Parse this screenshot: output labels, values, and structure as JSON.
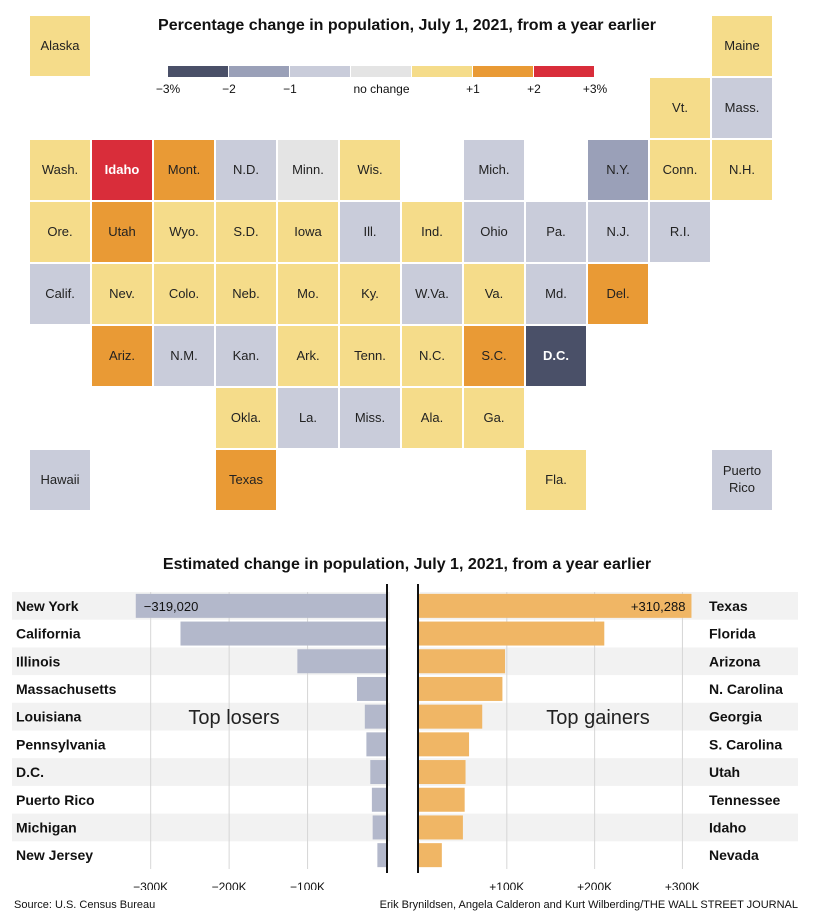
{
  "map": {
    "title": "Percentage change in population, July 1, 2021, from a year earlier",
    "legend": [
      {
        "label": "−3%",
        "color": "#4a5068"
      },
      {
        "label": "−2",
        "color": "#9aa0b8"
      },
      {
        "label": "−1",
        "color": "#c9ccda"
      },
      {
        "label": "no change",
        "color": "#e4e4e4"
      },
      {
        "label": "+1",
        "color": "#f5dc8a"
      },
      {
        "label": "+2",
        "color": "#e99a35"
      },
      {
        "label": "+3%",
        "color": "#d92d3a"
      }
    ],
    "tiles": [
      {
        "label": "Alaska",
        "row": 0,
        "col": 0,
        "level": 4
      },
      {
        "label": "Maine",
        "row": 0,
        "col": 11,
        "level": 4
      },
      {
        "label": "Vt.",
        "row": 1,
        "col": 10,
        "level": 4
      },
      {
        "label": "Mass.",
        "row": 1,
        "col": 11,
        "level": 2
      },
      {
        "label": "Wash.",
        "row": 2,
        "col": 0,
        "level": 4
      },
      {
        "label": "Idaho",
        "row": 2,
        "col": 1,
        "level": 6
      },
      {
        "label": "Mont.",
        "row": 2,
        "col": 2,
        "level": 5
      },
      {
        "label": "N.D.",
        "row": 2,
        "col": 3,
        "level": 2
      },
      {
        "label": "Minn.",
        "row": 2,
        "col": 4,
        "level": 3
      },
      {
        "label": "Wis.",
        "row": 2,
        "col": 5,
        "level": 4
      },
      {
        "label": "Mich.",
        "row": 2,
        "col": 7,
        "level": 2
      },
      {
        "label": "N.Y.",
        "row": 2,
        "col": 9,
        "level": 1
      },
      {
        "label": "Conn.",
        "row": 2,
        "col": 10,
        "level": 4
      },
      {
        "label": "N.H.",
        "row": 2,
        "col": 11,
        "level": 4
      },
      {
        "label": "Ore.",
        "row": 3,
        "col": 0,
        "level": 4
      },
      {
        "label": "Utah",
        "row": 3,
        "col": 1,
        "level": 5
      },
      {
        "label": "Wyo.",
        "row": 3,
        "col": 2,
        "level": 4
      },
      {
        "label": "S.D.",
        "row": 3,
        "col": 3,
        "level": 4
      },
      {
        "label": "Iowa",
        "row": 3,
        "col": 4,
        "level": 4
      },
      {
        "label": "Ill.",
        "row": 3,
        "col": 5,
        "level": 2
      },
      {
        "label": "Ind.",
        "row": 3,
        "col": 6,
        "level": 4
      },
      {
        "label": "Ohio",
        "row": 3,
        "col": 7,
        "level": 2
      },
      {
        "label": "Pa.",
        "row": 3,
        "col": 8,
        "level": 2
      },
      {
        "label": "N.J.",
        "row": 3,
        "col": 9,
        "level": 2
      },
      {
        "label": "R.I.",
        "row": 3,
        "col": 10,
        "level": 2
      },
      {
        "label": "Calif.",
        "row": 4,
        "col": 0,
        "level": 2
      },
      {
        "label": "Nev.",
        "row": 4,
        "col": 1,
        "level": 4
      },
      {
        "label": "Colo.",
        "row": 4,
        "col": 2,
        "level": 4
      },
      {
        "label": "Neb.",
        "row": 4,
        "col": 3,
        "level": 4
      },
      {
        "label": "Mo.",
        "row": 4,
        "col": 4,
        "level": 4
      },
      {
        "label": "Ky.",
        "row": 4,
        "col": 5,
        "level": 4
      },
      {
        "label": "W.Va.",
        "row": 4,
        "col": 6,
        "level": 2
      },
      {
        "label": "Va.",
        "row": 4,
        "col": 7,
        "level": 4
      },
      {
        "label": "Md.",
        "row": 4,
        "col": 8,
        "level": 2
      },
      {
        "label": "Del.",
        "row": 4,
        "col": 9,
        "level": 5
      },
      {
        "label": "Ariz.",
        "row": 5,
        "col": 1,
        "level": 5
      },
      {
        "label": "N.M.",
        "row": 5,
        "col": 2,
        "level": 2
      },
      {
        "label": "Kan.",
        "row": 5,
        "col": 3,
        "level": 2
      },
      {
        "label": "Ark.",
        "row": 5,
        "col": 4,
        "level": 4
      },
      {
        "label": "Tenn.",
        "row": 5,
        "col": 5,
        "level": 4
      },
      {
        "label": "N.C.",
        "row": 5,
        "col": 6,
        "level": 4
      },
      {
        "label": "S.C.",
        "row": 5,
        "col": 7,
        "level": 5
      },
      {
        "label": "D.C.",
        "row": 5,
        "col": 8,
        "level": 0
      },
      {
        "label": "Okla.",
        "row": 6,
        "col": 3,
        "level": 4
      },
      {
        "label": "La.",
        "row": 6,
        "col": 4,
        "level": 2
      },
      {
        "label": "Miss.",
        "row": 6,
        "col": 5,
        "level": 2
      },
      {
        "label": "Ala.",
        "row": 6,
        "col": 6,
        "level": 4
      },
      {
        "label": "Ga.",
        "row": 6,
        "col": 7,
        "level": 4
      },
      {
        "label": "Hawaii",
        "row": 7,
        "col": 0,
        "level": 2
      },
      {
        "label": "Texas",
        "row": 7,
        "col": 3,
        "level": 5
      },
      {
        "label": "Fla.",
        "row": 7,
        "col": 8,
        "level": 4
      },
      {
        "label": "Puerto Rico",
        "row": 7,
        "col": 11,
        "level": 2
      }
    ]
  },
  "chart_data": {
    "type": "bar",
    "title": "Estimated change in population, July 1, 2021, from a year earlier",
    "losers": {
      "annotation": "Top losers",
      "color": "#b3b8cb",
      "categories": [
        "New York",
        "California",
        "Illinois",
        "Massachusetts",
        "Louisiana",
        "Pennsylvania",
        "D.C.",
        "Puerto Rico",
        "Michigan",
        "New Jersey"
      ],
      "values": [
        -319020,
        -262000,
        -113000,
        -37000,
        -27000,
        -25000,
        -20000,
        -18000,
        -17000,
        -11000
      ],
      "value_labels": [
        "−319,020",
        "",
        "",
        "",
        "",
        "",
        "",
        "",
        "",
        ""
      ],
      "xlim": [
        -320000,
        0
      ],
      "ticks": [
        {
          "value": -300000,
          "label": "−300K"
        },
        {
          "value": -200000,
          "label": "−200K"
        },
        {
          "value": -100000,
          "label": "−100K"
        }
      ]
    },
    "gainers": {
      "annotation": "Top gainers",
      "color": "#f0b665",
      "categories": [
        "Texas",
        "Florida",
        "Arizona",
        "N. Carolina",
        "Georgia",
        "S. Carolina",
        "Utah",
        "Tennessee",
        "Idaho",
        "Nevada"
      ],
      "values": [
        310288,
        211000,
        98000,
        95000,
        72000,
        57000,
        53000,
        52000,
        50000,
        26000
      ],
      "value_labels": [
        "+310,288",
        "",
        "",
        "",
        "",
        "",
        "",
        "",
        "",
        ""
      ],
      "xlim": [
        0,
        320000
      ],
      "ticks": [
        {
          "value": 100000,
          "label": "+100K"
        },
        {
          "value": 200000,
          "label": "+200K"
        },
        {
          "value": 300000,
          "label": "+300K"
        }
      ]
    }
  },
  "footer": {
    "source": "Source: U.S. Census Bureau",
    "credit": "Erik Brynildsen, Angela Calderon and Kurt Wilberding/THE WALL STREET JOURNAL"
  }
}
